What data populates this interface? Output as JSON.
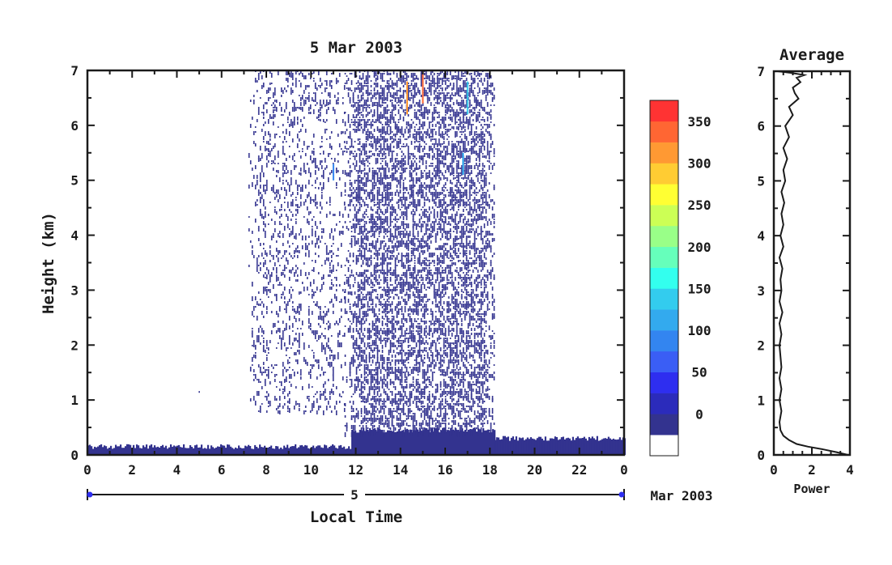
{
  "chart_data": [
    {
      "type": "heatmap",
      "title": "5 Mar 2003",
      "xlabel": "Local Time",
      "ylabel": "Height (km)",
      "xlim": [
        0,
        24
      ],
      "ylim": [
        0,
        7
      ],
      "x_ticks": [
        "0",
        "2",
        "4",
        "6",
        "8",
        "10",
        "12",
        "14",
        "16",
        "18",
        "20",
        "22",
        "0"
      ],
      "y_ticks": [
        "0",
        "1",
        "2",
        "3",
        "4",
        "5",
        "6",
        "7"
      ],
      "date_axis": {
        "day_label": "5",
        "month_label": "Mar 2003"
      },
      "colorbar": {
        "ticks": [
          "0",
          "50",
          "100",
          "150",
          "200",
          "250",
          "300",
          "350"
        ],
        "range": [
          0,
          380
        ],
        "colors": [
          "#ffffff",
          "#33338f",
          "#2b2bbb",
          "#2e2ef0",
          "#3a5ef5",
          "#3385f0",
          "#33aaee",
          "#33ccee",
          "#33ffee",
          "#66ffbb",
          "#99ff88",
          "#ccff55",
          "#ffff33",
          "#ffcc33",
          "#ff9933",
          "#ff6633",
          "#ff3333"
        ]
      },
      "regions": [
        {
          "name": "",
          "x": [
            0,
            11.8
          ],
          "height_km": [
            0,
            0.15
          ],
          "value_band": "0-25"
        },
        {
          "name": "",
          "x": [
            11.8,
            18.2
          ],
          "height_km": [
            0,
            0.45
          ],
          "value_band": "0-25"
        },
        {
          "name": "",
          "x": [
            18.2,
            24
          ],
          "height_km": [
            0,
            0.3
          ],
          "value_band": "0-25"
        },
        {
          "name": "",
          "x": [
            7.2,
            11.5
          ],
          "height_km": [
            0.8,
            7
          ],
          "value_band": "0-25"
        },
        {
          "name": "",
          "x": [
            11.5,
            18.2
          ],
          "height_km": [
            0.4,
            7
          ],
          "value_band": "0-25"
        },
        {
          "name": "",
          "x": [
            4.9,
            5.4
          ],
          "height_km": [
            1.05,
            1.25
          ],
          "value_band": "0-25"
        }
      ],
      "highlights": [
        {
          "x": 15.0,
          "height_km": [
            6.4,
            7.0
          ],
          "value": 350
        },
        {
          "x": 14.3,
          "height_km": [
            6.2,
            6.8
          ],
          "value": 320
        },
        {
          "x": 17.0,
          "height_km": [
            6.2,
            6.8
          ],
          "value": 150
        },
        {
          "x": 16.8,
          "height_km": [
            5.1,
            5.5
          ],
          "value": 120
        },
        {
          "x": 11.0,
          "height_km": [
            5.0,
            5.3
          ],
          "value": 100
        }
      ]
    },
    {
      "type": "line",
      "title": "Average",
      "xlabel": "Power",
      "ylabel": "",
      "xlim": [
        0,
        4
      ],
      "ylim": [
        0,
        7
      ],
      "x_ticks": [
        "0",
        "2",
        "4"
      ],
      "y_ticks": [
        "0",
        "1",
        "2",
        "3",
        "4",
        "5",
        "6",
        "7"
      ],
      "series": [
        {
          "x": [
            3.9,
            3.3,
            2.6,
            1.8,
            1.2,
            0.8,
            0.5,
            0.35,
            0.3,
            0.4,
            0.3,
            0.4,
            0.3,
            0.4,
            0.35,
            0.3,
            0.4,
            0.3,
            0.45,
            0.3,
            0.4,
            0.35,
            0.45,
            0.3,
            0.5,
            0.35,
            0.5,
            0.4,
            0.55,
            0.4,
            0.6,
            0.5,
            0.7,
            0.5,
            0.8,
            0.6,
            1.0,
            0.8,
            1.3,
            1.1,
            1.0,
            1.4,
            1.2,
            1.6,
            0.9,
            0.2
          ],
          "y": [
            0.0,
            0.05,
            0.1,
            0.15,
            0.2,
            0.27,
            0.35,
            0.45,
            0.6,
            0.8,
            1.0,
            1.2,
            1.4,
            1.6,
            1.8,
            2.0,
            2.2,
            2.4,
            2.6,
            2.8,
            3.0,
            3.2,
            3.4,
            3.6,
            3.8,
            4.0,
            4.2,
            4.4,
            4.6,
            4.8,
            5.0,
            5.2,
            5.4,
            5.6,
            5.8,
            6.0,
            6.2,
            6.35,
            6.5,
            6.6,
            6.7,
            6.8,
            6.88,
            6.93,
            6.97,
            7.0
          ]
        }
      ]
    }
  ]
}
